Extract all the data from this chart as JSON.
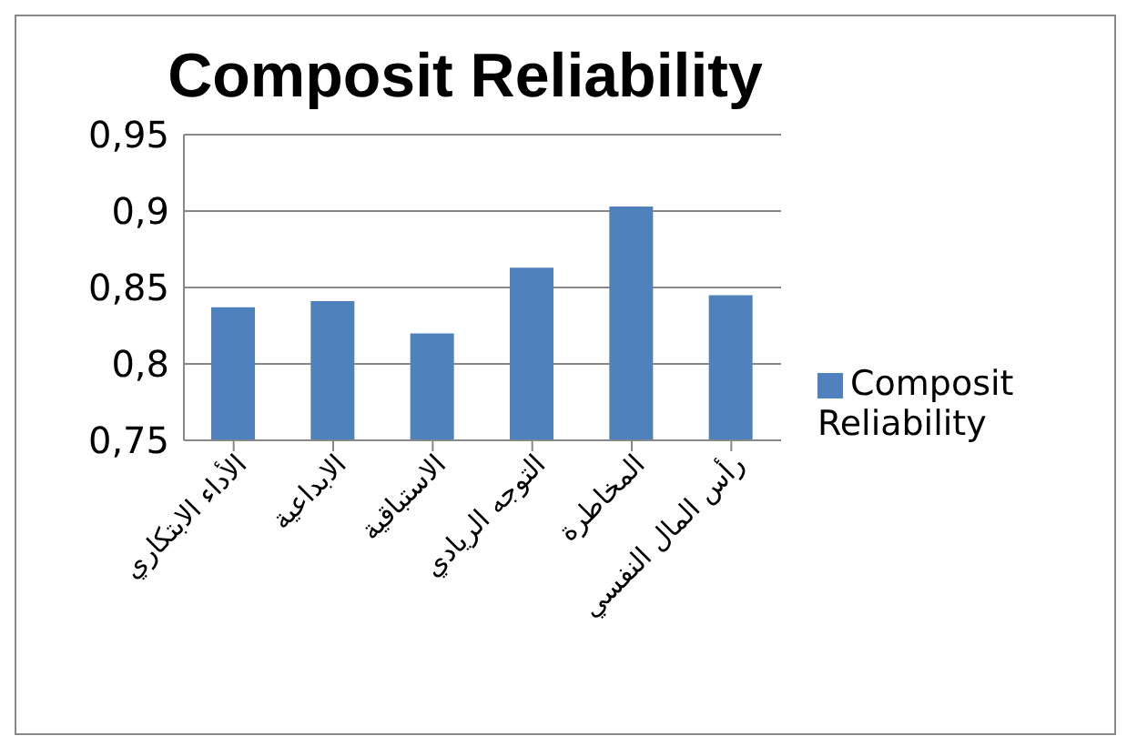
{
  "chart_data": {
    "type": "bar",
    "title": "Composit Reliability",
    "categories": [
      "الأداء الابتكاري",
      "الابداعية",
      "الاستباقية",
      "التوجه الريادي",
      "المخاطرة",
      "رأس المال النفسي"
    ],
    "series": [
      {
        "name": "Composit Reliability",
        "color": "#4f81bd",
        "values": [
          0.837,
          0.841,
          0.82,
          0.863,
          0.903,
          0.845
        ]
      }
    ],
    "ylim": [
      0.75,
      0.95
    ],
    "yticks": [
      {
        "value": 0.75,
        "label": "0,75"
      },
      {
        "value": 0.8,
        "label": "0,8"
      },
      {
        "value": 0.85,
        "label": "0,85"
      },
      {
        "value": 0.9,
        "label": "0,9"
      },
      {
        "value": 0.95,
        "label": "0,95"
      }
    ],
    "grid": "y",
    "legend": "right"
  }
}
